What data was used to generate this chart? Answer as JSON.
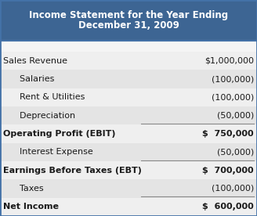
{
  "title_line1": "Income Statement for the Year Ending",
  "title_line2": "December 31, 2009",
  "title_bg": "#3d6593",
  "title_color": "#ffffff",
  "title_fontsize": 8.5,
  "body_fontsize": 8.0,
  "fig_width": 3.28,
  "fig_height": 2.76,
  "dpi": 100,
  "outer_border_color": "#4472a8",
  "body_bg_even": "#efefef",
  "body_bg_odd": "#e4e4e4",
  "gap_bg": "#f5f5f5",
  "text_color": "#1a1a1a",
  "underline_color": "#888888",
  "rows": [
    {
      "label": "Sales Revenue",
      "value": "$1,000,000",
      "bold": false,
      "indent": 0,
      "underline_value": false
    },
    {
      "label": "  Salaries",
      "value": "(100,000)",
      "bold": false,
      "indent": 1,
      "underline_value": false
    },
    {
      "label": "  Rent & Utilities",
      "value": "(100,000)",
      "bold": false,
      "indent": 1,
      "underline_value": false
    },
    {
      "label": "  Depreciation",
      "value": "(50,000)",
      "bold": false,
      "indent": 1,
      "underline_value": true
    },
    {
      "label": "Operating Profit (EBIT)",
      "value": "$  750,000",
      "bold": true,
      "indent": 0,
      "underline_value": false
    },
    {
      "label": "  Interest Expense",
      "value": "(50,000)",
      "bold": false,
      "indent": 1,
      "underline_value": true
    },
    {
      "label": "Earnings Before Taxes (EBT)",
      "value": "$  700,000",
      "bold": true,
      "indent": 0,
      "underline_value": false
    },
    {
      "label": "  Taxes",
      "value": "(100,000)",
      "bold": false,
      "indent": 1,
      "underline_value": true
    },
    {
      "label": "Net Income",
      "value": "$  600,000",
      "bold": true,
      "indent": 0,
      "underline_value": false
    }
  ]
}
